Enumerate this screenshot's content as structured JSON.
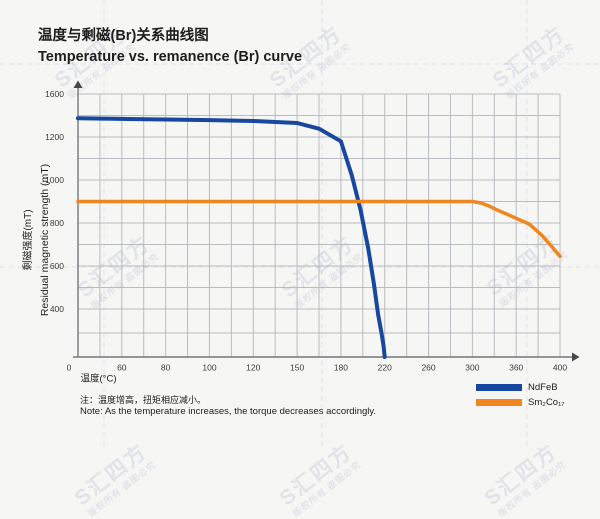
{
  "title": {
    "zh": "温度与剩磁(Br)关系曲线图",
    "en": "Temperature vs. remanence (Br) curve"
  },
  "note": {
    "zh": "注：温度增高，扭矩相应减小。",
    "en": "Note: As the temperature increases, the torque decreases accordingly."
  },
  "watermark": {
    "brand": "S汇四方",
    "slogan": "版权所有 盗图必究"
  },
  "chart_data": {
    "type": "line",
    "title": "Temperature vs. remanence (Br) curve",
    "xlabel": "温度(°C)",
    "ylabel_zh": "剩磁强度(mT)",
    "ylabel_en": "Residual magnetic strength (mT)",
    "x_ticks": [
      0,
      60,
      80,
      100,
      120,
      150,
      180,
      220,
      260,
      300,
      360,
      400
    ],
    "y_ticks": [
      1600,
      1200,
      1000,
      800,
      600,
      400,
      0
    ],
    "ylim": [
      0,
      1600
    ],
    "xlim": [
      0,
      400
    ],
    "grid": true,
    "legend_position": "bottom-right",
    "colors": {
      "grid": "#b9bcc0",
      "axis": "#74777b",
      "text": "#3a3a3a"
    },
    "series": [
      {
        "name": "NdFeB",
        "color": "#17479e",
        "x": [
          0,
          60,
          80,
          100,
          120,
          150,
          165,
          180,
          190,
          198,
          205,
          210,
          214,
          217,
          219,
          220
        ],
        "values": [
          1375,
          1368,
          1363,
          1357,
          1349,
          1330,
          1277,
          1180,
          1020,
          860,
          680,
          520,
          350,
          200,
          90,
          0
        ]
      },
      {
        "name": "Sm₂Co₁₇",
        "color": "#f0861f",
        "x": [
          0,
          60,
          120,
          180,
          240,
          300,
          312,
          324,
          336,
          348,
          360,
          372,
          384,
          400
        ],
        "values": [
          900,
          900,
          900,
          900,
          900,
          900,
          893,
          877,
          857,
          840,
          822,
          795,
          740,
          645
        ]
      }
    ]
  }
}
